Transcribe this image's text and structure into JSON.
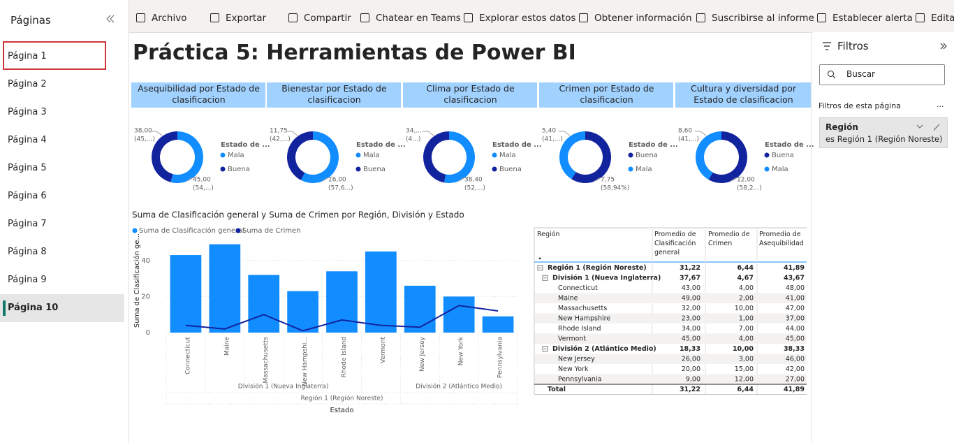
{
  "sidebar": {
    "title": "Páginas",
    "pages": [
      "Página 1",
      "Página 2",
      "Página 3",
      "Página 4",
      "Página 5",
      "Página 6",
      "Página 7",
      "Página 8",
      "Página 9",
      "Página 10"
    ]
  },
  "toolbar": {
    "items": [
      "Archivo",
      "Exportar",
      "Compartir",
      "Chatear en Teams",
      "Explorar estos datos",
      "Obtener información",
      "Suscribirse al informe",
      "Establecer alerta",
      "Editar"
    ]
  },
  "report": {
    "title": "Práctica 5: Herramientas de Power BI",
    "donuts": [
      {
        "type": "donut",
        "title": "Asequibilidad por Estado de clasificacion",
        "legend_title": "Estado de ...",
        "series": [
          {
            "name": "Mala",
            "color": "#118dff",
            "value": 45,
            "value_label": "45,00",
            "percent_label": "(54,...)"
          },
          {
            "name": "Buena",
            "color": "#12239e",
            "value": 38,
            "value_label": "38,00",
            "percent_label": "(45,...)"
          }
        ]
      },
      {
        "type": "donut",
        "title": "Bienestar por Estado de clasificacion",
        "legend_title": "Estado de ...",
        "series": [
          {
            "name": "Mala",
            "color": "#118dff",
            "value": 16,
            "value_label": "16,00",
            "percent_label": "(57,6...)"
          },
          {
            "name": "Buena",
            "color": "#12239e",
            "value": 11.75,
            "value_label": "11,75",
            "percent_label": "(42,...)"
          }
        ]
      },
      {
        "type": "donut",
        "title": "Clima por Estado de clasificacion",
        "legend_title": "Estado de ...",
        "series": [
          {
            "name": "Mala",
            "color": "#118dff",
            "value": 38.4,
            "value_label": "38,40",
            "percent_label": "(52,...)"
          },
          {
            "name": "Buena",
            "color": "#12239e",
            "value": 34,
            "value_label": "34,...",
            "percent_label": "(4...)"
          }
        ]
      },
      {
        "type": "donut",
        "title": "Crimen por Estado de clasificacion",
        "legend_title": "Estado de ...",
        "series": [
          {
            "name": "Buena",
            "color": "#12239e",
            "value": 7.75,
            "value_label": "7,75",
            "percent_label": "(58,94%)"
          },
          {
            "name": "Mala",
            "color": "#118dff",
            "value": 5.4,
            "value_label": "5,40",
            "percent_label": "(41,...)"
          }
        ]
      },
      {
        "type": "donut",
        "title": "Cultura y diversidad por Estado de clasificacion",
        "legend_title": "Estado de ...",
        "series": [
          {
            "name": "Buena",
            "color": "#12239e",
            "value": 12,
            "value_label": "12,00",
            "percent_label": "(58,2...)"
          },
          {
            "name": "Mala",
            "color": "#118dff",
            "value": 8.6,
            "value_label": "8,60",
            "percent_label": "(41,...)"
          }
        ]
      }
    ],
    "combo": {
      "type": "bar-line",
      "title": "Suma de Clasificación general y Suma de Crimen por Región, División y Estado",
      "y_label": "Suma de Clasificación ge...",
      "x_label": "Estado",
      "categories": [
        "Connecticut",
        "Maine",
        "Massachusetts",
        "New Hampshi...",
        "Rhode Island",
        "Vermont",
        "New Jersey",
        "New York",
        "Pennsylvania"
      ],
      "groups": [
        {
          "label": "División 1 (Nueva Inglaterra)",
          "count": 6
        },
        {
          "label": "División 2 (Atlántico Medio)",
          "count": 3
        }
      ],
      "super_group": "Región 1 (Región Noreste)",
      "ylim": [
        0,
        50
      ],
      "yticks": [
        0,
        20,
        40
      ],
      "series": [
        {
          "name": "Suma de Clasificación general",
          "color": "#118dff",
          "kind": "bar",
          "values": [
            43,
            49,
            32,
            23,
            34,
            45,
            26,
            20,
            9
          ]
        },
        {
          "name": "Suma de Crimen",
          "color": "#12239e",
          "kind": "line",
          "values": [
            4,
            2,
            10,
            1,
            7,
            4,
            3,
            15,
            12
          ]
        }
      ]
    },
    "table": {
      "headers": [
        "Región",
        "Promedio de Clasificación general",
        "Promedio de Crimen",
        "Promedio de Asequibilidad"
      ],
      "rows": [
        {
          "level": 0,
          "label": "Región 1 (Región Noreste)",
          "values": [
            "31,22",
            "6,44",
            "41,89"
          ]
        },
        {
          "level": 1,
          "label": "División 1 (Nueva Inglaterra)",
          "values": [
            "37,67",
            "4,67",
            "43,67"
          ]
        },
        {
          "level": 2,
          "label": "Connecticut",
          "values": [
            "43,00",
            "4,00",
            "48,00"
          ]
        },
        {
          "level": 2,
          "label": "Maine",
          "values": [
            "49,00",
            "2,00",
            "41,00"
          ]
        },
        {
          "level": 2,
          "label": "Massachusetts",
          "values": [
            "32,00",
            "10,00",
            "47,00"
          ]
        },
        {
          "level": 2,
          "label": "New Hampshire",
          "values": [
            "23,00",
            "1,00",
            "37,00"
          ]
        },
        {
          "level": 2,
          "label": "Rhode Island",
          "values": [
            "34,00",
            "7,00",
            "44,00"
          ]
        },
        {
          "level": 2,
          "label": "Vermont",
          "values": [
            "45,00",
            "4,00",
            "45,00"
          ]
        },
        {
          "level": 1,
          "label": "División 2 (Atlántico Medio)",
          "values": [
            "18,33",
            "10,00",
            "38,33"
          ]
        },
        {
          "level": 2,
          "label": "New Jersey",
          "values": [
            "26,00",
            "3,00",
            "46,00"
          ]
        },
        {
          "level": 2,
          "label": "New York",
          "values": [
            "20,00",
            "15,00",
            "42,00"
          ]
        },
        {
          "level": 2,
          "label": "Pennsylvania",
          "values": [
            "9,00",
            "12,00",
            "27,00"
          ]
        },
        {
          "level": 3,
          "label": "Total",
          "values": [
            "31,22",
            "6,44",
            "41,89"
          ]
        }
      ]
    }
  },
  "filters": {
    "title": "Filtros",
    "search_placeholder": "Buscar",
    "section": "Filtros de esta página",
    "more": "...",
    "card": {
      "field": "Región",
      "condition": "es Región 1 (Región Noreste)"
    }
  }
}
